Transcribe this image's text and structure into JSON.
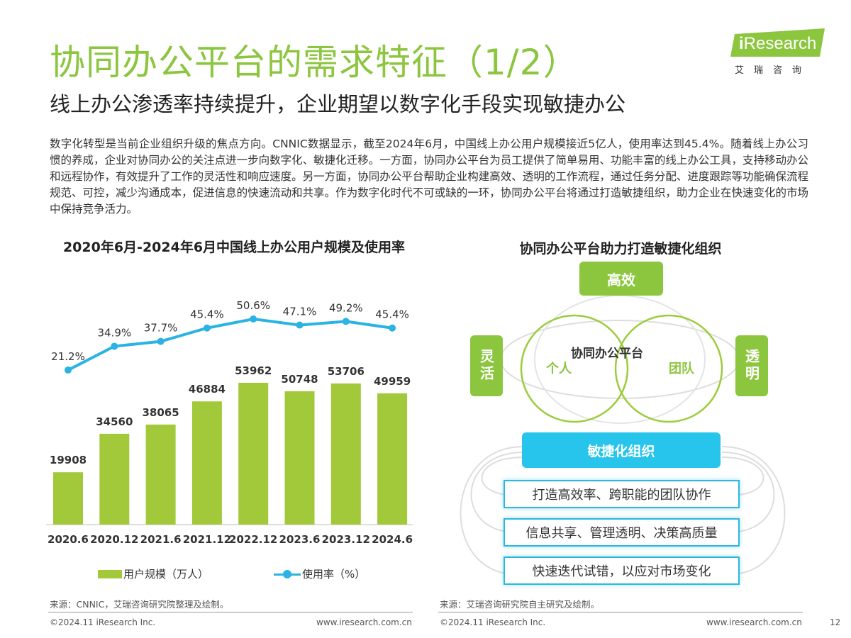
{
  "header": {
    "title": "协同办公平台的需求特征（1/2）",
    "subtitle": "线上办公渗透率持续提升，企业期望以数字化手段实现敏捷办公"
  },
  "logo": {
    "mark": "i",
    "text": "Research",
    "cn": "艾瑞咨询",
    "color": "#8cc63f"
  },
  "intro": "数字化转型是当前企业组织升级的焦点方向。CNNIC数据显示，截至2024年6月，中国线上办公用户规模接近5亿人，使用率达到45.4%。随着线上办公习惯的养成，企业对协同办公的关注点进一步向数字化、敏捷化迁移。一方面，协同办公平台为员工提供了简单易用、功能丰富的线上办公工具，支持移动办公和远程协作，有效提升了工作的灵活性和响应速度。另一方面，协同办公平台帮助企业构建高效、透明的工作流程，通过任务分配、进度跟踪等功能确保流程规范、可控，减少沟通成本，促进信息的快速流动和共享。作为数字化时代不可或缺的一环，协同办公平台将通过打造敏捷组织，助力企业在快速变化的市场中保持竞争活力。",
  "chart_data": {
    "type": "bar",
    "title": "2020年6月-2024年6月中国线上办公用户规模及使用率",
    "categories": [
      "2020.6",
      "2020.12",
      "2021.6",
      "2021.12",
      "2022.12",
      "2023.6",
      "2023.12",
      "2024.6"
    ],
    "series": [
      {
        "name": "用户规模（万人）",
        "type": "bar",
        "values": [
          19908,
          34560,
          38065,
          46884,
          53962,
          50748,
          53706,
          49959
        ],
        "color": "#a2c93a"
      },
      {
        "name": "使用率（%）",
        "type": "line",
        "values": [
          21.2,
          34.9,
          37.7,
          45.4,
          50.6,
          47.1,
          49.2,
          45.4
        ],
        "labels": [
          "21.2%",
          "34.9%",
          "37.7%",
          "45.4%",
          "50.6%",
          "47.1%",
          "49.2%",
          "45.4%"
        ],
        "color": "#2ab3e3"
      }
    ],
    "grid": false,
    "legend": "bottom"
  },
  "diagram": {
    "title": "协同办公平台助力打造敏捷化组织",
    "top": "高效",
    "left": "灵活",
    "right": "透明",
    "center": "协同办公平台",
    "circle_left": "个人",
    "circle_right": "团队",
    "core": "敏捷化组织",
    "features": [
      "打造高效率、跨职能的团队协作",
      "信息共享、管理透明、决策高质量",
      "快速迭代试错，以应对市场变化"
    ]
  },
  "sources": {
    "left": "来源：CNNIC，艾瑞咨询研究院整理及绘制。",
    "right": "来源：艾瑞咨询研究院自主研究及绘制。"
  },
  "footer": {
    "copyright": "©2024.11 iResearch Inc.",
    "url": "www.iresearch.com.cn",
    "page": "12"
  }
}
